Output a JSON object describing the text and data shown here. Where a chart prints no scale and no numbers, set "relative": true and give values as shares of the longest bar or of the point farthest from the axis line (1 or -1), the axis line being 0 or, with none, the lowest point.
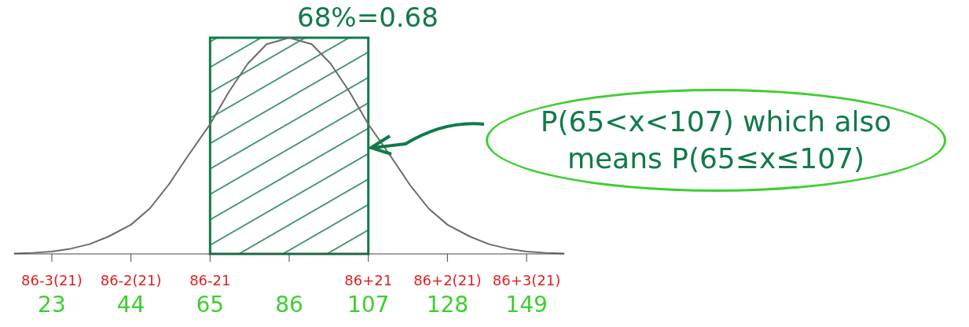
{
  "chart_data": {
    "type": "line",
    "relative": true,
    "x": [
      13,
      18,
      23,
      28,
      33,
      38,
      44,
      49,
      54,
      59,
      65,
      70,
      75,
      80,
      86,
      92,
      97,
      102,
      107,
      113,
      118,
      123,
      128,
      134,
      139,
      144,
      149,
      154,
      159
    ],
    "series": [
      {
        "color": "#6b6b6b",
        "values": [
          0.002,
          0.005,
          0.011,
          0.024,
          0.045,
          0.08,
          0.135,
          0.21,
          0.32,
          0.45,
          0.6,
          0.75,
          0.88,
          0.97,
          1,
          0.97,
          0.88,
          0.75,
          0.6,
          0.45,
          0.32,
          0.21,
          0.135,
          0.08,
          0.045,
          0.024,
          0.011,
          0.005,
          0.002
        ]
      }
    ],
    "xlim": [
      13,
      159
    ],
    "xticks": [
      23,
      44,
      65,
      86,
      107,
      128,
      149
    ],
    "bands": [
      {
        "axis": "x",
        "from": 65,
        "to": 107,
        "label": "68%=0.68",
        "color": "#117a4a"
      }
    ],
    "annotations": [
      "P(65<x<107) which also means P(65≤x≤107)",
      "86-3(21)",
      "86-2(21)",
      "86-21",
      "86+21",
      "86+2(21)",
      "86+3(21)"
    ],
    "marker": "none",
    "grid": false,
    "legend": false
  }
}
